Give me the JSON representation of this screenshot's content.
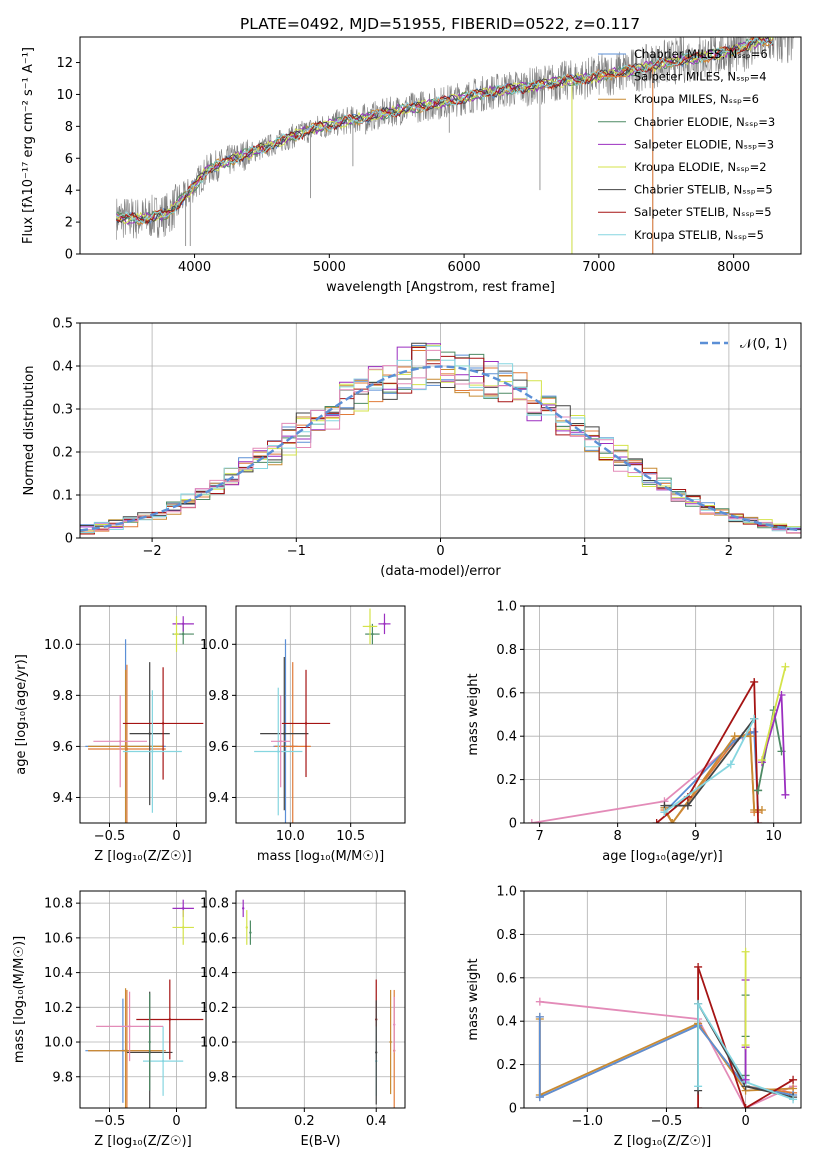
{
  "figure_title": "PLATE=0492, MJD=51955, FIBERID=0522, z=0.117",
  "colors": {
    "data": "#808080",
    "chabrier_miles": "#5b8fd6",
    "salpeter_miles": "#e07b39",
    "kroupa_miles": "#c88a32",
    "chabrier_elodie": "#4d8a64",
    "salpeter_elodie": "#9b2fc0",
    "kroupa_elodie": "#d4e34a",
    "chabrier_stelib": "#444444",
    "salpeter_stelib": "#a51414",
    "kroupa_stelib": "#86d6e0",
    "pink": "#e38bb8",
    "normal_curve": "#5b8fd6"
  },
  "chart_data": [
    {
      "id": "spectrum",
      "type": "line",
      "title": "PLATE=0492, MJD=51955, FIBERID=0522, z=0.117",
      "xlabel": "wavelength [Angstrom, rest frame]",
      "ylabel": "Flux [fλ10⁻¹⁷ erg cm⁻² s⁻¹ A⁻¹]",
      "xlim": [
        3150,
        8500
      ],
      "ylim": [
        0,
        13.6
      ],
      "xticks": [
        4000,
        5000,
        6000,
        7000,
        8000
      ],
      "yticks": [
        0,
        2,
        4,
        6,
        8,
        10,
        12
      ],
      "legend_position": "top-right",
      "legend": [
        "Chabrier MILES, Nₛₛₚ=6",
        "Salpeter MILES, Nₛₛₚ=4",
        "Kroupa MILES, Nₛₛₚ=6",
        "Chabrier ELODIE, Nₛₛₚ=3",
        "Salpeter ELODIE, Nₛₛₚ=3",
        "Kroupa ELODIE, Nₛₛₚ=2",
        "Chabrier STELIB, Nₛₛₚ=5",
        "Salpeter STELIB, Nₛₛₚ=5",
        "Kroupa STELIB, Nₛₛₚ=5"
      ],
      "continuum": {
        "x": [
          3400,
          3600,
          3800,
          3950,
          4100,
          4300,
          4500,
          4700,
          4900,
          5100,
          5300,
          5500,
          5700,
          5900,
          6100,
          6300,
          6500,
          6700,
          6900,
          7100,
          7300,
          7500,
          7800,
          8000,
          8200
        ],
        "y": [
          2.3,
          2.2,
          2.5,
          3.8,
          5.3,
          6.0,
          6.6,
          7.3,
          7.9,
          8.3,
          8.6,
          9.0,
          9.3,
          9.6,
          10.0,
          10.3,
          10.5,
          10.8,
          11.0,
          11.3,
          11.6,
          12.0,
          12.4,
          12.8,
          13.4
        ]
      }
    },
    {
      "id": "residuals",
      "type": "line",
      "xlabel": "(data-model)/error",
      "ylabel": "Normed distribution",
      "xlim": [
        -2.5,
        2.5
      ],
      "ylim": [
        0,
        0.5
      ],
      "xticks": [
        -2,
        -1,
        0,
        1,
        2
      ],
      "yticks": [
        0.0,
        0.1,
        0.2,
        0.3,
        0.4,
        0.5
      ],
      "grid": true,
      "legend_position": "top-right",
      "legend": [
        "𝒩(0, 1)"
      ],
      "normal": {
        "mean": 0,
        "sigma": 1
      },
      "histogram_bins": {
        "start": -2.5,
        "width": 0.1,
        "count": 50
      }
    },
    {
      "id": "age-vs-Z",
      "type": "scatter",
      "xlabel": "Z [log₁₀(Z/Z☉)]",
      "ylabel": "age  [log₁₀(age/yr)]",
      "xlim": [
        -0.72,
        0.22
      ],
      "ylim": [
        9.3,
        10.15
      ],
      "xticks": [
        -0.5,
        0.0
      ],
      "yticks": [
        9.4,
        9.6,
        9.8,
        10.0
      ],
      "grid": true,
      "points": [
        {
          "c": "chabrier_miles",
          "x": -0.38,
          "y": 9.6,
          "xerr": 0.3,
          "yerr": 0.42
        },
        {
          "c": "salpeter_miles",
          "x": -0.37,
          "y": 9.59,
          "xerr": 0.29,
          "yerr": 0.33
        },
        {
          "c": "kroupa_miles",
          "x": -0.38,
          "y": 9.6,
          "xerr": 0.28,
          "yerr": 0.3
        },
        {
          "c": "chabrier_elodie",
          "x": 0.05,
          "y": 10.04,
          "xerr": 0.08,
          "yerr": 0.04
        },
        {
          "c": "salpeter_elodie",
          "x": 0.05,
          "y": 10.08,
          "xerr": 0.08,
          "yerr": 0.03
        },
        {
          "c": "kroupa_elodie",
          "x": 0.0,
          "y": 10.04,
          "xerr": 0.02,
          "yerr": 0.07
        },
        {
          "c": "chabrier_stelib",
          "x": -0.2,
          "y": 9.65,
          "xerr": 0.15,
          "yerr": 0.28
        },
        {
          "c": "salpeter_stelib",
          "x": -0.1,
          "y": 9.69,
          "xerr": 0.3,
          "yerr": 0.22
        },
        {
          "c": "kroupa_stelib",
          "x": -0.18,
          "y": 9.58,
          "xerr": 0.22,
          "yerr": 0.24
        },
        {
          "c": "pink",
          "x": -0.42,
          "y": 9.62,
          "xerr": 0.2,
          "yerr": 0.18
        }
      ]
    },
    {
      "id": "age-vs-mass",
      "type": "scatter",
      "xlabel": "mass [log₁₀(M/M☉)]",
      "ylabel": "",
      "xlim": [
        9.55,
        10.95
      ],
      "ylim": [
        9.3,
        10.15
      ],
      "xticks": [
        10.0,
        10.5
      ],
      "yticks": [
        9.4,
        9.6,
        9.8,
        10.0
      ],
      "grid": true,
      "points": [
        {
          "c": "chabrier_miles",
          "x": 9.96,
          "y": 9.6,
          "xerr": 0.1,
          "yerr": 0.42
        },
        {
          "c": "salpeter_miles",
          "x": 10.02,
          "y": 9.6,
          "xerr": 0.15,
          "yerr": 0.33
        },
        {
          "c": "chabrier_elodie",
          "x": 10.68,
          "y": 10.04,
          "xerr": 0.06,
          "yerr": 0.04
        },
        {
          "c": "salpeter_elodie",
          "x": 10.78,
          "y": 10.08,
          "xerr": 0.05,
          "yerr": 0.04
        },
        {
          "c": "kroupa_elodie",
          "x": 10.66,
          "y": 10.07,
          "xerr": 0.06,
          "yerr": 0.07
        },
        {
          "c": "chabrier_stelib",
          "x": 9.95,
          "y": 9.65,
          "xerr": 0.2,
          "yerr": 0.3
        },
        {
          "c": "salpeter_stelib",
          "x": 10.13,
          "y": 9.69,
          "xerr": 0.2,
          "yerr": 0.21
        },
        {
          "c": "kroupa_stelib",
          "x": 9.9,
          "y": 9.58,
          "xerr": 0.2,
          "yerr": 0.25
        },
        {
          "c": "pink",
          "x": 9.92,
          "y": 9.62,
          "xerr": 0.08,
          "yerr": 0.18
        }
      ]
    },
    {
      "id": "massweight-vs-age",
      "type": "line",
      "xlabel": "age  [log₁₀(age/yr)]",
      "ylabel": "mass weight",
      "xlim": [
        6.8,
        10.35
      ],
      "ylim": [
        0,
        1
      ],
      "xticks": [
        7,
        8,
        9,
        10
      ],
      "yticks": [
        0.0,
        0.2,
        0.4,
        0.6,
        0.8,
        1.0
      ],
      "grid": true,
      "series": [
        {
          "c": "pink",
          "x": [
            6.9,
            8.6,
            9.6,
            9.75
          ],
          "y": [
            0.0,
            0.1,
            0.4,
            0.42
          ]
        },
        {
          "c": "salpeter_miles",
          "x": [
            8.6,
            8.7,
            9.5,
            9.7,
            9.75,
            9.8
          ],
          "y": [
            0.06,
            0.0,
            0.38,
            0.42,
            0.05,
            0.05
          ]
        },
        {
          "c": "chabrier_miles",
          "x": [
            8.6,
            9.5,
            9.75,
            9.8
          ],
          "y": [
            0.05,
            0.38,
            0.42,
            0.06
          ]
        },
        {
          "c": "kroupa_miles",
          "x": [
            8.6,
            8.7,
            9.5,
            9.7,
            9.75,
            9.85
          ],
          "y": [
            0.07,
            0.0,
            0.4,
            0.4,
            0.06,
            0.06
          ]
        },
        {
          "c": "salpeter_stelib",
          "x": [
            8.5,
            8.9,
            9.75,
            9.8
          ],
          "y": [
            0.0,
            0.12,
            0.65,
            0.0
          ]
        },
        {
          "c": "chabrier_stelib",
          "x": [
            8.6,
            8.9,
            9.75
          ],
          "y": [
            0.08,
            0.08,
            0.48
          ]
        },
        {
          "c": "kroupa_stelib",
          "x": [
            8.6,
            9.45,
            9.75
          ],
          "y": [
            0.05,
            0.27,
            0.48
          ]
        },
        {
          "c": "chabrier_elodie",
          "x": 9.8,
          "y": 0.15
        },
        {
          "c": "chabrier_elodie",
          "x": [
            9.8,
            10.0,
            10.1
          ],
          "y": [
            0.15,
            0.52,
            0.33
          ]
        },
        {
          "c": "salpeter_elodie",
          "x": [
            9.85,
            10.1,
            10.15
          ],
          "y": [
            0.28,
            0.59,
            0.13
          ]
        },
        {
          "c": "kroupa_elodie",
          "x": [
            9.85,
            10.15
          ],
          "y": [
            0.29,
            0.72
          ]
        }
      ]
    },
    {
      "id": "mass-vs-Z",
      "type": "scatter",
      "xlabel": "Z [log₁₀(Z/Z☉)]",
      "ylabel": "mass [log₁₀(M/M☉)]",
      "xlim": [
        -0.72,
        0.22
      ],
      "ylim": [
        9.62,
        10.87
      ],
      "xticks": [
        -0.5,
        0.0
      ],
      "yticks": [
        9.8,
        10.0,
        10.2,
        10.4,
        10.6,
        10.8
      ],
      "grid": true,
      "points": [
        {
          "c": "chabrier_miles",
          "x": -0.4,
          "y": 9.95,
          "xerr": 0.28,
          "yerr": 0.3
        },
        {
          "c": "salpeter_miles",
          "x": -0.37,
          "y": 9.95,
          "xerr": 0.29,
          "yerr": 0.35
        },
        {
          "c": "kroupa_miles",
          "x": -0.38,
          "y": 9.95,
          "xerr": 0.28,
          "yerr": 0.36
        },
        {
          "c": "salpeter_elodie",
          "x": 0.05,
          "y": 10.77,
          "xerr": 0.08,
          "yerr": 0.05
        },
        {
          "c": "kroupa_elodie",
          "x": 0.05,
          "y": 10.66,
          "xerr": 0.08,
          "yerr": 0.1
        },
        {
          "c": "chabrier_stelib",
          "x": -0.2,
          "y": 9.94,
          "xerr": 0.17,
          "yerr": 0.35
        },
        {
          "c": "salpeter_stelib",
          "x": -0.05,
          "y": 10.13,
          "xerr": 0.25,
          "yerr": 0.23
        },
        {
          "c": "kroupa_stelib",
          "x": -0.1,
          "y": 9.89,
          "xerr": 0.15,
          "yerr": 0.2
        },
        {
          "c": "pink",
          "x": -0.35,
          "y": 10.09,
          "xerr": 0.25,
          "yerr": 0.2
        },
        {
          "c": "chabrier_elodie",
          "x": -0.2,
          "y": 10.0,
          "xerr": 0.0,
          "yerr": 0.28
        }
      ]
    },
    {
      "id": "mass-vs-EBV",
      "type": "scatter",
      "xlabel": "E(B-V)",
      "ylabel": "",
      "xlim": [
        0.01,
        0.48
      ],
      "ylim": [
        9.62,
        10.87
      ],
      "xticks": [
        0.2,
        0.4
      ],
      "yticks": [
        9.8,
        10.0,
        10.2,
        10.4,
        10.6,
        10.8
      ],
      "grid": true,
      "points": [
        {
          "c": "salpeter_elodie",
          "x": 0.03,
          "y": 10.77,
          "xerr": 0.0,
          "yerr": 0.05
        },
        {
          "c": "kroupa_elodie",
          "x": 0.04,
          "y": 10.66,
          "xerr": 0.0,
          "yerr": 0.1
        },
        {
          "c": "chabrier_elodie",
          "x": 0.05,
          "y": 10.63,
          "xerr": 0.0,
          "yerr": 0.07
        },
        {
          "c": "salpeter_stelib",
          "x": 0.4,
          "y": 10.13,
          "xerr": 0.0,
          "yerr": 0.23
        },
        {
          "c": "kroupa_stelib",
          "x": 0.4,
          "y": 9.89,
          "xerr": 0.0,
          "yerr": 0.2
        },
        {
          "c": "chabrier_stelib",
          "x": 0.4,
          "y": 9.94,
          "xerr": 0.0,
          "yerr": 0.3
        },
        {
          "c": "salpeter_miles",
          "x": 0.45,
          "y": 9.95,
          "xerr": 0.0,
          "yerr": 0.35
        },
        {
          "c": "kroupa_miles",
          "x": 0.44,
          "y": 10.0,
          "xerr": 0.0,
          "yerr": 0.3
        },
        {
          "c": "pink",
          "x": 0.45,
          "y": 10.1,
          "xerr": 0.0,
          "yerr": 0.16
        }
      ]
    },
    {
      "id": "massweight-vs-Z",
      "type": "line",
      "xlabel": "Z [log₁₀(Z/Z☉)]",
      "ylabel": "mass weight",
      "xlim": [
        -1.4,
        0.35
      ],
      "ylim": [
        0,
        1
      ],
      "xticks": [
        -1.0,
        -0.5,
        0.0
      ],
      "yticks": [
        0.0,
        0.2,
        0.4,
        0.6,
        0.8,
        1.0
      ],
      "grid": true,
      "series": [
        {
          "c": "pink",
          "x": [
            -1.3,
            -0.3,
            0.0,
            0.3
          ],
          "y": [
            0.49,
            0.41,
            0.0,
            0.1
          ]
        },
        {
          "c": "salpeter_miles",
          "x": [
            -1.3,
            -1.3,
            -0.3,
            0.0,
            0.3
          ],
          "y": [
            0.42,
            0.05,
            0.38,
            0.1,
            0.07
          ]
        },
        {
          "c": "kroupa_miles",
          "x": [
            -1.3,
            -1.3,
            -0.3,
            0.0,
            0.3
          ],
          "y": [
            0.41,
            0.06,
            0.39,
            0.08,
            0.09
          ]
        },
        {
          "c": "chabrier_miles",
          "x": [
            -1.3,
            -1.3,
            -0.3,
            0.0,
            0.3
          ],
          "y": [
            0.42,
            0.05,
            0.38,
            0.1,
            0.06
          ]
        },
        {
          "c": "salpeter_stelib",
          "x": [
            -0.3,
            -0.3,
            0.0,
            0.3
          ],
          "y": [
            0.0,
            0.65,
            0.0,
            0.13
          ]
        },
        {
          "c": "chabrier_stelib",
          "x": [
            -0.3,
            -0.3,
            0.0,
            0.3
          ],
          "y": [
            0.08,
            0.48,
            0.1,
            0.05
          ]
        },
        {
          "c": "kroupa_stelib",
          "x": [
            -0.3,
            -0.3,
            0.0,
            0.3
          ],
          "y": [
            0.1,
            0.48,
            0.12,
            0.04
          ]
        },
        {
          "c": "chabrier_elodie",
          "x": [
            0.0,
            0.0,
            0.0
          ],
          "y": [
            0.15,
            0.52,
            0.33
          ]
        },
        {
          "c": "salpeter_elodie",
          "x": [
            0.0,
            0.0,
            0.0
          ],
          "y": [
            0.28,
            0.59,
            0.13
          ]
        },
        {
          "c": "kroupa_elodie",
          "x": [
            0.0,
            0.0
          ],
          "y": [
            0.29,
            0.72
          ]
        }
      ]
    }
  ]
}
